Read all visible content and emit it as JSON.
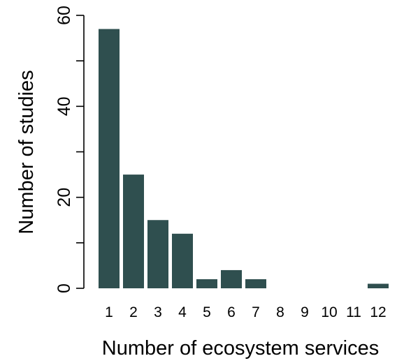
{
  "chart_data": {
    "type": "bar",
    "categories": [
      "1",
      "2",
      "3",
      "4",
      "5",
      "6",
      "7",
      "8",
      "9",
      "10",
      "11",
      "12"
    ],
    "values": [
      57,
      25,
      15,
      12,
      2,
      4,
      2,
      0,
      0,
      0,
      0,
      1
    ],
    "xlabel": "Number of ecosystem services",
    "ylabel": "Number of studies",
    "ylim": [
      0,
      60
    ],
    "yticks": [
      "0",
      "20",
      "40",
      "60"
    ],
    "bar_color": "#2f4f4f",
    "grid": false
  }
}
